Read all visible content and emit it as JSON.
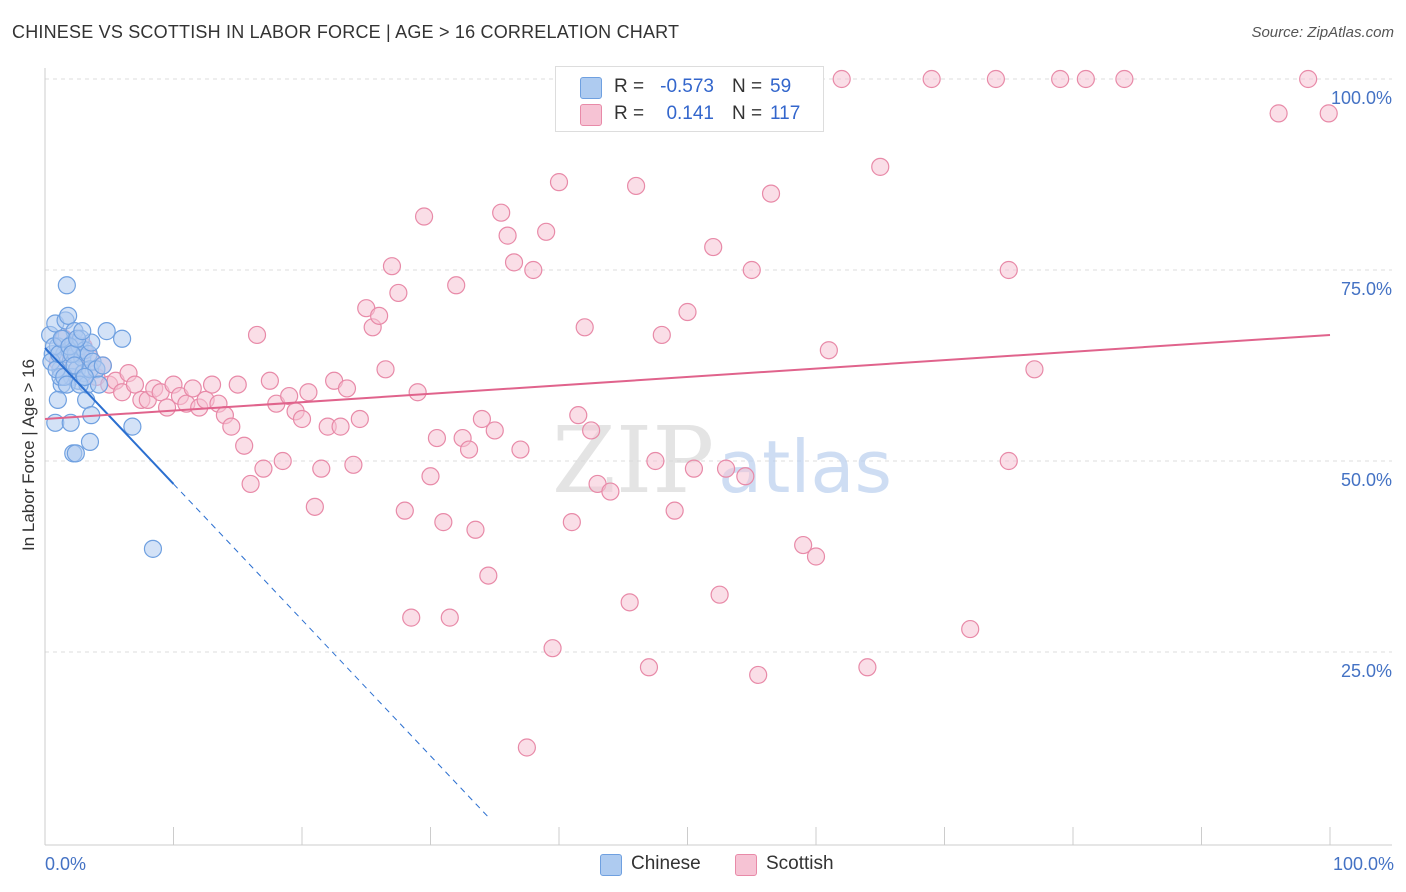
{
  "title": "CHINESE VS SCOTTISH IN LABOR FORCE | AGE > 16 CORRELATION CHART",
  "source": "Source: ZipAtlas.com",
  "watermark": {
    "zip": "ZIP",
    "atlas": "atlas"
  },
  "colors": {
    "chinese": "#6fa0e0",
    "chinese_fill": "#aecbf0",
    "chinese_line": "#2b6fd0",
    "scottish": "#e88aa8",
    "scottish_fill": "#f6c3d4",
    "scottish_line": "#e0638c",
    "axis_label": "#4472c4",
    "grid": "#dddddd"
  },
  "legend": {
    "rows": [
      {
        "series": "chinese",
        "r_label": "R =",
        "r_value": "-0.573",
        "n_label": "N =",
        "n_value": "59"
      },
      {
        "series": "scottish",
        "r_label": "R =",
        "r_value": "0.141",
        "n_label": "N =",
        "n_value": "117"
      }
    ]
  },
  "bottom_legend": {
    "chinese": "Chinese",
    "scottish": "Scottish"
  },
  "chart_data": {
    "type": "scatter",
    "title": "CHINESE VS SCOTTISH IN LABOR FORCE | AGE > 16 CORRELATION CHART",
    "xlabel": "",
    "ylabel": "In Labor Force | Age > 16",
    "xlim": [
      0,
      1
    ],
    "ylim": [
      0,
      1
    ],
    "x_tick_labels": {
      "min": "0.0%",
      "max": "100.0%"
    },
    "y_ticks": [
      {
        "value": 1.0,
        "label": "100.0%"
      },
      {
        "value": 0.75,
        "label": "75.0%"
      },
      {
        "value": 0.5,
        "label": "50.0%"
      },
      {
        "value": 0.25,
        "label": "25.0%"
      }
    ],
    "grid": true,
    "series": [
      {
        "name": "Chinese",
        "r": -0.573,
        "n": 59,
        "trend": {
          "x0": 0.0,
          "y0": 0.648,
          "x1": 0.1,
          "y1": 0.47,
          "dash_to_x": 0.345
        },
        "points": [
          [
            0.004,
            0.665
          ],
          [
            0.006,
            0.64
          ],
          [
            0.008,
            0.68
          ],
          [
            0.01,
            0.65
          ],
          [
            0.012,
            0.62
          ],
          [
            0.013,
            0.6
          ],
          [
            0.014,
            0.66
          ],
          [
            0.015,
            0.64
          ],
          [
            0.016,
            0.684
          ],
          [
            0.017,
            0.73
          ],
          [
            0.018,
            0.69
          ],
          [
            0.019,
            0.645
          ],
          [
            0.02,
            0.63
          ],
          [
            0.021,
            0.61
          ],
          [
            0.022,
            0.655
          ],
          [
            0.023,
            0.67
          ],
          [
            0.024,
            0.64
          ],
          [
            0.025,
            0.62
          ],
          [
            0.026,
            0.605
          ],
          [
            0.027,
            0.65
          ],
          [
            0.028,
            0.66
          ],
          [
            0.029,
            0.635
          ],
          [
            0.03,
            0.615
          ],
          [
            0.031,
            0.645
          ],
          [
            0.032,
            0.58
          ],
          [
            0.033,
            0.6
          ],
          [
            0.034,
            0.64
          ],
          [
            0.035,
            0.62
          ],
          [
            0.036,
            0.655
          ],
          [
            0.037,
            0.63
          ],
          [
            0.008,
            0.55
          ],
          [
            0.01,
            0.58
          ],
          [
            0.012,
            0.61
          ],
          [
            0.02,
            0.55
          ],
          [
            0.022,
            0.51
          ],
          [
            0.024,
            0.51
          ],
          [
            0.035,
            0.525
          ],
          [
            0.036,
            0.56
          ],
          [
            0.04,
            0.62
          ],
          [
            0.042,
            0.6
          ],
          [
            0.045,
            0.625
          ],
          [
            0.048,
            0.67
          ],
          [
            0.06,
            0.66
          ],
          [
            0.068,
            0.545
          ],
          [
            0.084,
            0.385
          ],
          [
            0.005,
            0.63
          ],
          [
            0.007,
            0.65
          ],
          [
            0.009,
            0.62
          ],
          [
            0.011,
            0.64
          ],
          [
            0.013,
            0.66
          ],
          [
            0.015,
            0.61
          ],
          [
            0.017,
            0.6
          ],
          [
            0.019,
            0.65
          ],
          [
            0.021,
            0.64
          ],
          [
            0.023,
            0.625
          ],
          [
            0.025,
            0.66
          ],
          [
            0.027,
            0.6
          ],
          [
            0.029,
            0.67
          ],
          [
            0.031,
            0.61
          ]
        ]
      },
      {
        "name": "Scottish",
        "r": 0.141,
        "n": 117,
        "trend": {
          "x0": 0.0,
          "y0": 0.555,
          "x1": 1.0,
          "y1": 0.665
        },
        "points": [
          [
            0.01,
            0.63
          ],
          [
            0.015,
            0.66
          ],
          [
            0.02,
            0.64
          ],
          [
            0.025,
            0.62
          ],
          [
            0.03,
            0.65
          ],
          [
            0.035,
            0.635
          ],
          [
            0.04,
            0.61
          ],
          [
            0.045,
            0.625
          ],
          [
            0.05,
            0.6
          ],
          [
            0.055,
            0.605
          ],
          [
            0.06,
            0.59
          ],
          [
            0.065,
            0.615
          ],
          [
            0.07,
            0.6
          ],
          [
            0.075,
            0.58
          ],
          [
            0.08,
            0.58
          ],
          [
            0.085,
            0.595
          ],
          [
            0.09,
            0.59
          ],
          [
            0.095,
            0.57
          ],
          [
            0.1,
            0.6
          ],
          [
            0.105,
            0.585
          ],
          [
            0.11,
            0.575
          ],
          [
            0.115,
            0.595
          ],
          [
            0.12,
            0.57
          ],
          [
            0.125,
            0.58
          ],
          [
            0.13,
            0.6
          ],
          [
            0.135,
            0.575
          ],
          [
            0.14,
            0.56
          ],
          [
            0.145,
            0.545
          ],
          [
            0.15,
            0.6
          ],
          [
            0.155,
            0.52
          ],
          [
            0.16,
            0.47
          ],
          [
            0.165,
            0.665
          ],
          [
            0.17,
            0.49
          ],
          [
            0.175,
            0.605
          ],
          [
            0.18,
            0.575
          ],
          [
            0.185,
            0.5
          ],
          [
            0.19,
            0.585
          ],
          [
            0.195,
            0.565
          ],
          [
            0.2,
            0.555
          ],
          [
            0.205,
            0.59
          ],
          [
            0.21,
            0.44
          ],
          [
            0.215,
            0.49
          ],
          [
            0.22,
            0.545
          ],
          [
            0.225,
            0.605
          ],
          [
            0.23,
            0.545
          ],
          [
            0.235,
            0.595
          ],
          [
            0.24,
            0.495
          ],
          [
            0.245,
            0.555
          ],
          [
            0.25,
            0.7
          ],
          [
            0.255,
            0.675
          ],
          [
            0.26,
            0.69
          ],
          [
            0.265,
            0.62
          ],
          [
            0.27,
            0.755
          ],
          [
            0.275,
            0.72
          ],
          [
            0.28,
            0.435
          ],
          [
            0.285,
            0.295
          ],
          [
            0.29,
            0.59
          ],
          [
            0.295,
            0.82
          ],
          [
            0.3,
            0.48
          ],
          [
            0.305,
            0.53
          ],
          [
            0.31,
            0.42
          ],
          [
            0.315,
            0.295
          ],
          [
            0.32,
            0.73
          ],
          [
            0.325,
            0.53
          ],
          [
            0.33,
            0.515
          ],
          [
            0.335,
            0.41
          ],
          [
            0.34,
            0.555
          ],
          [
            0.345,
            0.35
          ],
          [
            0.35,
            0.54
          ],
          [
            0.355,
            0.825
          ],
          [
            0.36,
            0.795
          ],
          [
            0.365,
            0.76
          ],
          [
            0.37,
            0.515
          ],
          [
            0.375,
            0.125
          ],
          [
            0.38,
            0.75
          ],
          [
            0.39,
            0.8
          ],
          [
            0.395,
            0.255
          ],
          [
            0.4,
            0.865
          ],
          [
            0.41,
            0.42
          ],
          [
            0.415,
            0.56
          ],
          [
            0.42,
            0.675
          ],
          [
            0.425,
            0.54
          ],
          [
            0.43,
            0.47
          ],
          [
            0.44,
            0.46
          ],
          [
            0.455,
            0.315
          ],
          [
            0.46,
            0.86
          ],
          [
            0.47,
            0.23
          ],
          [
            0.475,
            0.5
          ],
          [
            0.48,
            0.665
          ],
          [
            0.49,
            0.435
          ],
          [
            0.5,
            0.695
          ],
          [
            0.505,
            0.49
          ],
          [
            0.52,
            0.78
          ],
          [
            0.525,
            0.325
          ],
          [
            0.53,
            0.49
          ],
          [
            0.545,
            0.48
          ],
          [
            0.55,
            0.75
          ],
          [
            0.555,
            0.22
          ],
          [
            0.565,
            0.85
          ],
          [
            0.59,
            0.39
          ],
          [
            0.6,
            0.375
          ],
          [
            0.61,
            0.645
          ],
          [
            0.62,
            1.0
          ],
          [
            0.64,
            0.23
          ],
          [
            0.65,
            0.885
          ],
          [
            0.69,
            1.0
          ],
          [
            0.72,
            0.28
          ],
          [
            0.74,
            1.0
          ],
          [
            0.75,
            0.5
          ],
          [
            0.75,
            0.75
          ],
          [
            0.77,
            0.62
          ],
          [
            0.79,
            1.0
          ],
          [
            0.81,
            1.0
          ],
          [
            0.84,
            1.0
          ],
          [
            0.96,
            0.955
          ],
          [
            0.983,
            1.0
          ],
          [
            0.999,
            0.955
          ]
        ]
      }
    ]
  }
}
